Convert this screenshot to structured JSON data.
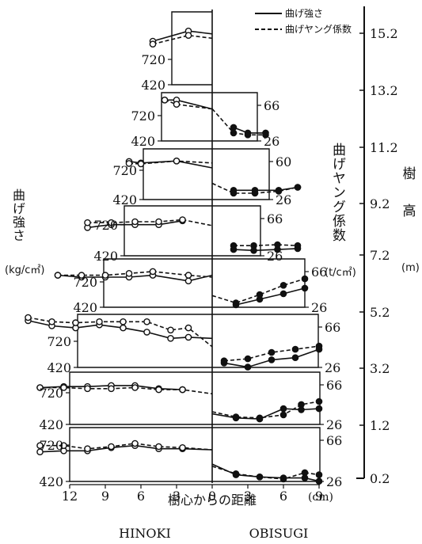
{
  "chart_data": {
    "type": "line",
    "legend": {
      "placement": "top-right",
      "solid_label": "曲げ強さ",
      "dashed_label": "曲げヤング係数"
    },
    "left_axis_label": [
      "曲",
      "げ",
      "強",
      "さ"
    ],
    "left_axis_unit": "(kg/c㎡)",
    "middle_axis_label": "曲げヤング係数",
    "middle_axis_unit": "(t/c㎡)",
    "height_axis_label": [
      "樹",
      "高"
    ],
    "height_axis_unit": "(m)",
    "height_ticks": [
      "15.2",
      "13.2",
      "11.2",
      "9.2",
      "7.2",
      "5.2",
      "3.2",
      "1.2",
      "0.2"
    ],
    "x_axis_title": "樹心からの距離",
    "x_unit": "(cm)",
    "x_ticks_left": [
      "12",
      "9",
      "6",
      "3",
      "0"
    ],
    "x_ticks_right": [
      "3",
      "6",
      "9"
    ],
    "species_left": "HINOKI",
    "species_right": "OBISUGI",
    "colors": {
      "line": "#111111",
      "background": "#ffffff"
    },
    "panels": [
      {
        "height_m": "15.2",
        "strength_ticks": [
          "720",
          "420"
        ],
        "modulus_ticks": [],
        "hinoki_strength": [
          [
            5,
            720
          ],
          [
            2,
            790
          ],
          [
            0,
            770
          ]
        ],
        "hinoki_modulus": [
          [
            5,
            700
          ],
          [
            2,
            760
          ],
          [
            0,
            740
          ]
        ],
        "obisugi_strength": [],
        "obisugi_modulus": []
      },
      {
        "height_m": "13.2",
        "strength_ticks": [
          "720",
          "420"
        ],
        "modulus_ticks": [
          "66",
          "26"
        ],
        "hinoki_strength": [
          [
            4,
            855
          ],
          [
            3,
            855
          ],
          [
            0,
            760
          ]
        ],
        "hinoki_modulus": [
          [
            4,
            855
          ],
          [
            3,
            810
          ],
          [
            0,
            760
          ]
        ],
        "obisugi_strength": [
          [
            1.8,
            38
          ],
          [
            3,
            32
          ],
          [
            4.5,
            32
          ]
        ],
        "obisugi_modulus": [
          [
            0,
            58
          ],
          [
            1.8,
            32
          ],
          [
            3,
            30
          ],
          [
            4.5,
            30
          ]
        ]
      },
      {
        "height_m": "11.2",
        "strength_ticks": [
          "720",
          "420"
        ],
        "modulus_ticks": [
          "60",
          "26"
        ],
        "hinoki_strength": [
          [
            7,
            805
          ],
          [
            6,
            790
          ],
          [
            3,
            810
          ],
          [
            0,
            740
          ]
        ],
        "hinoki_modulus": [
          [
            7,
            785
          ],
          [
            6,
            780
          ],
          [
            3,
            810
          ],
          [
            0,
            790
          ]
        ],
        "obisugi_strength": [
          [
            1.8,
            33
          ],
          [
            3.6,
            33
          ],
          [
            5.6,
            33
          ],
          [
            7.2,
            36
          ]
        ],
        "obisugi_modulus": [
          [
            0,
            40
          ],
          [
            1.8,
            30
          ],
          [
            3.6,
            30
          ],
          [
            5.6,
            32
          ],
          [
            7.2,
            36
          ]
        ]
      },
      {
        "height_m": "9.2",
        "strength_ticks": [
          "720",
          "420"
        ],
        "modulus_ticks": [
          "66",
          "26"
        ],
        "hinoki_strength": [
          [
            10.5,
            710
          ],
          [
            8.5,
            740
          ],
          [
            6.5,
            740
          ],
          [
            4.5,
            740
          ],
          [
            2.5,
            780
          ]
        ],
        "hinoki_modulus": [
          [
            10.5,
            760
          ],
          [
            8.5,
            760
          ],
          [
            6.5,
            770
          ],
          [
            4.5,
            770
          ],
          [
            2.5,
            790
          ],
          [
            0,
            730
          ]
        ],
        "obisugi_strength": [
          [
            1.8,
            30
          ],
          [
            3.5,
            29
          ],
          [
            5.5,
            30
          ],
          [
            7.2,
            31
          ]
        ],
        "obisugi_modulus": [
          [
            1.8,
            34
          ],
          [
            3.5,
            34
          ],
          [
            5.5,
            35
          ],
          [
            7.2,
            34
          ]
        ]
      },
      {
        "height_m": "7.2",
        "strength_ticks": [
          "720",
          "420"
        ],
        "modulus_ticks": [
          "66",
          "26"
        ],
        "hinoki_strength": [
          [
            13,
            760
          ],
          [
            11,
            740
          ],
          [
            9,
            740
          ],
          [
            7,
            740
          ],
          [
            5,
            760
          ],
          [
            2,
            700
          ],
          [
            0,
            760
          ]
        ],
        "hinoki_modulus": [
          [
            13,
            760
          ],
          [
            11,
            760
          ],
          [
            9,
            760
          ],
          [
            7,
            780
          ],
          [
            5,
            800
          ],
          [
            2,
            760
          ],
          [
            0,
            740
          ]
        ],
        "obisugi_strength": [
          [
            2,
            26
          ],
          [
            4,
            32
          ],
          [
            6,
            38
          ],
          [
            7.8,
            44
          ]
        ],
        "obisugi_modulus": [
          [
            0,
            36
          ],
          [
            2,
            28
          ],
          [
            4,
            37
          ],
          [
            6,
            47
          ],
          [
            7.8,
            54
          ]
        ]
      },
      {
        "height_m": "5.2",
        "strength_ticks": [
          "720",
          "420"
        ],
        "modulus_ticks": [
          "66",
          "26"
        ],
        "hinoki_strength": [
          [
            15.5,
            870
          ],
          [
            13.5,
            820
          ],
          [
            11.5,
            800
          ],
          [
            9.5,
            830
          ],
          [
            7.5,
            800
          ],
          [
            5.5,
            760
          ],
          [
            3.5,
            700
          ],
          [
            2,
            710
          ],
          [
            0,
            700
          ]
        ],
        "hinoki_modulus": [
          [
            15.5,
            900
          ],
          [
            13.5,
            860
          ],
          [
            11.5,
            850
          ],
          [
            9.5,
            860
          ],
          [
            7.5,
            860
          ],
          [
            5.5,
            860
          ],
          [
            3.5,
            780
          ],
          [
            2,
            800
          ],
          [
            0,
            620
          ]
        ],
        "obisugi_strength": [
          [
            1,
            28
          ],
          [
            3,
            24
          ],
          [
            5,
            31
          ],
          [
            7,
            33
          ],
          [
            9,
            41
          ]
        ],
        "obisugi_modulus": [
          [
            1,
            30
          ],
          [
            3,
            32
          ],
          [
            5,
            38
          ],
          [
            7,
            41
          ],
          [
            9,
            44
          ]
        ]
      },
      {
        "height_m": "3.2",
        "strength_ticks": [
          "720",
          "420"
        ],
        "modulus_ticks": [
          "66",
          "26"
        ],
        "hinoki_strength": [
          [
            14.5,
            780
          ],
          [
            12.5,
            790
          ],
          [
            10.5,
            790
          ],
          [
            8.5,
            800
          ],
          [
            6.5,
            800
          ],
          [
            4.5,
            770
          ],
          [
            2.5,
            760
          ]
        ],
        "hinoki_modulus": [
          [
            14.5,
            780
          ],
          [
            12.5,
            780
          ],
          [
            10.5,
            770
          ],
          [
            8.5,
            770
          ],
          [
            6.5,
            780
          ],
          [
            4.5,
            760
          ],
          [
            2.5,
            760
          ],
          [
            0,
            720
          ]
        ],
        "obisugi_strength": [
          [
            0,
            34
          ],
          [
            2,
            30
          ],
          [
            4,
            29
          ],
          [
            6,
            39
          ],
          [
            7.5,
            38
          ],
          [
            9,
            39
          ]
        ],
        "obisugi_modulus": [
          [
            0,
            36
          ],
          [
            2,
            31
          ],
          [
            4,
            30
          ],
          [
            6,
            33
          ],
          [
            7.5,
            43
          ],
          [
            9,
            46
          ]
        ]
      },
      {
        "height_m": "0.2",
        "strength_ticks": [
          "720",
          "420"
        ],
        "modulus_ticks": [
          "66",
          "26"
        ],
        "hinoki_strength": [
          [
            14.5,
            700
          ],
          [
            12.5,
            710
          ],
          [
            10.5,
            710
          ],
          [
            8.5,
            740
          ],
          [
            6.5,
            760
          ],
          [
            4.5,
            730
          ],
          [
            2.5,
            730
          ],
          [
            0,
            720
          ]
        ],
        "hinoki_modulus": [
          [
            14.5,
            760
          ],
          [
            12.5,
            760
          ],
          [
            10.5,
            730
          ],
          [
            8.5,
            750
          ],
          [
            6.5,
            780
          ],
          [
            4.5,
            750
          ],
          [
            2.5,
            740
          ],
          [
            0,
            720
          ]
        ],
        "obisugi_strength": [
          [
            0,
            40
          ],
          [
            2,
            30
          ],
          [
            4,
            28
          ],
          [
            6,
            27
          ],
          [
            7.8,
            27
          ],
          [
            9,
            24
          ]
        ],
        "obisugi_modulus": [
          [
            0,
            38
          ],
          [
            2,
            31
          ],
          [
            4,
            28
          ],
          [
            6,
            26
          ],
          [
            7.8,
            32
          ],
          [
            9,
            30
          ]
        ]
      }
    ]
  }
}
